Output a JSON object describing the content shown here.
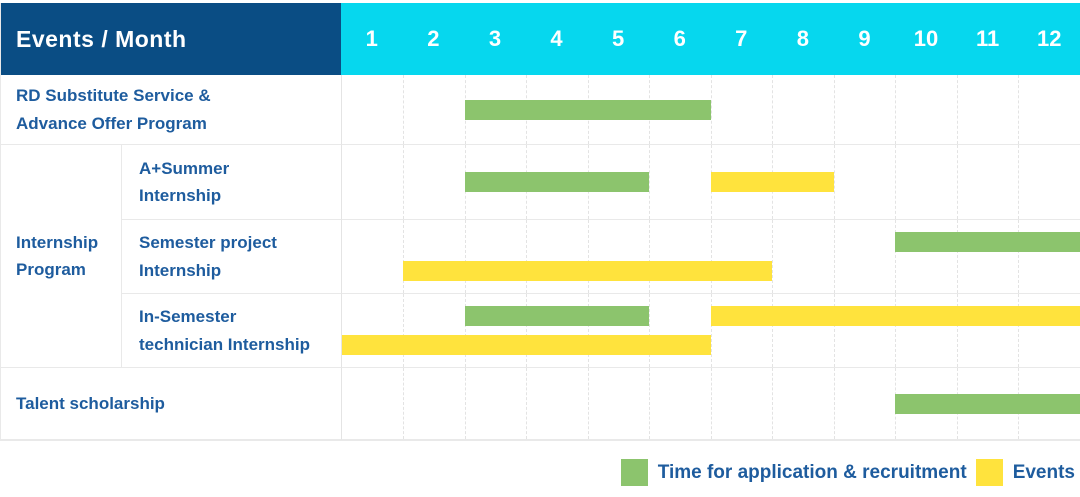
{
  "colors": {
    "navy": "#0a4d84",
    "cyan": "#06d7ee",
    "green": "#8cc46d",
    "yellow": "#ffe33d",
    "label_blue": "#1e5c9e",
    "grid_line": "#e9e9e9"
  },
  "header": {
    "title": "Events / Month",
    "months": [
      "1",
      "2",
      "3",
      "4",
      "5",
      "6",
      "7",
      "8",
      "9",
      "10",
      "11",
      "12"
    ]
  },
  "legend": {
    "items": [
      {
        "label": "Time for application & recruitment",
        "color": "green"
      },
      {
        "label": "Events",
        "color": "yellow"
      }
    ]
  },
  "chart_data": {
    "type": "bar",
    "subtype": "gantt-timeline",
    "title": "Events / Month",
    "x_axis_label": "Month",
    "x_ticks": [
      "1",
      "2",
      "3",
      "4",
      "5",
      "6",
      "7",
      "8",
      "9",
      "10",
      "11",
      "12"
    ],
    "x_range": [
      1,
      12
    ],
    "grid": true,
    "legend_position": "bottom-right",
    "series_legend": [
      {
        "name": "Time for application & recruitment",
        "color": "green"
      },
      {
        "name": "Events",
        "color": "yellow"
      }
    ],
    "groups": [
      {
        "label": "Internship\nProgram",
        "tasks": [
          "A+Summer Internship",
          "Semester project Internship",
          "In-Semester technician Internship"
        ]
      }
    ],
    "tasks": [
      {
        "name": "RD Substitute Service &\nAdvance Offer Program",
        "group": null,
        "lanes": 1,
        "bars": [
          {
            "series": "Time for application & recruitment",
            "color": "green",
            "start_month": 3,
            "end_month": 6,
            "lane": 0
          }
        ]
      },
      {
        "name": "A+Summer\nInternship",
        "group": "Internship Program",
        "lanes": 1,
        "bars": [
          {
            "series": "Time for application & recruitment",
            "color": "green",
            "start_month": 3,
            "end_month": 5,
            "lane": 0
          },
          {
            "series": "Events",
            "color": "yellow",
            "start_month": 7,
            "end_month": 8,
            "lane": 0
          }
        ]
      },
      {
        "name": "Semester project\nInternship",
        "group": "Internship Program",
        "lanes": 2,
        "bars": [
          {
            "series": "Time for application & recruitment",
            "color": "green",
            "start_month": 10,
            "end_month": 12,
            "lane": 0
          },
          {
            "series": "Events",
            "color": "yellow",
            "start_month": 2,
            "end_month": 7,
            "lane": 1
          }
        ]
      },
      {
        "name": "In-Semester\ntechnician Internship",
        "group": "Internship Program",
        "lanes": 2,
        "bars": [
          {
            "series": "Time for application & recruitment",
            "color": "green",
            "start_month": 3,
            "end_month": 5,
            "lane": 0
          },
          {
            "series": "Events",
            "color": "yellow",
            "start_month": 7,
            "end_month": 12,
            "lane": 0
          },
          {
            "series": "Events",
            "color": "yellow",
            "start_month": 1,
            "end_month": 6,
            "lane": 1
          }
        ]
      },
      {
        "name": "Talent scholarship",
        "group": null,
        "lanes": 1,
        "bars": [
          {
            "series": "Time for application & recruitment",
            "color": "green",
            "start_month": 10,
            "end_month": 12,
            "lane": 0
          }
        ]
      }
    ]
  }
}
